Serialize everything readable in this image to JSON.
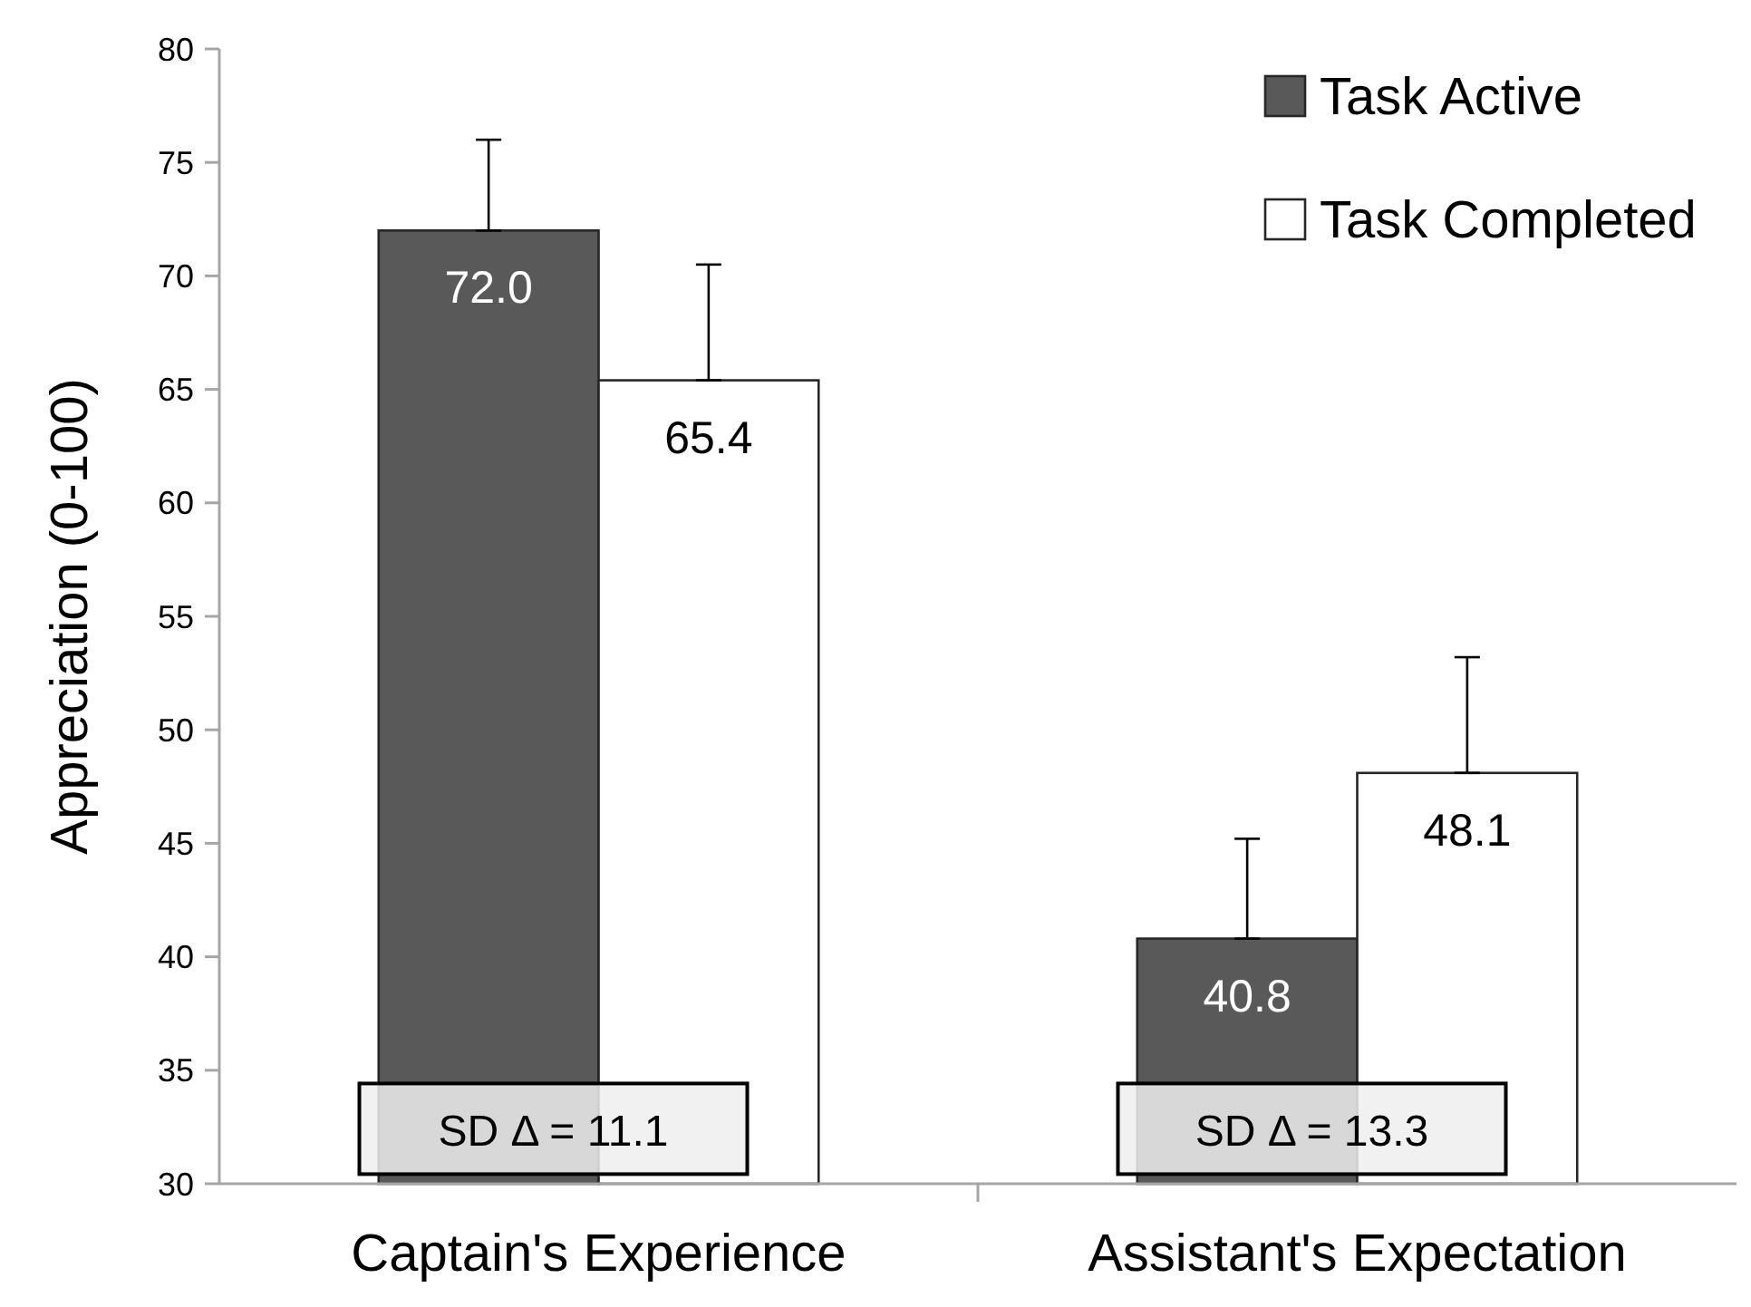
{
  "chart_data": {
    "type": "bar",
    "ylabel": "Appreciation (0-100)",
    "categories": [
      "Captain's Experience",
      "Assistant's Expectation"
    ],
    "series": [
      {
        "name": "Task Active",
        "color": "#595959",
        "values": [
          72.0,
          40.8
        ],
        "value_labels": [
          "72.0",
          "40.8"
        ],
        "errors": [
          [
            72.0,
            76.0
          ],
          [
            40.8,
            45.2
          ]
        ]
      },
      {
        "name": "Task Completed",
        "color": "#ffffff",
        "values": [
          65.4,
          48.1
        ],
        "value_labels": [
          "65.4",
          "48.1"
        ],
        "errors": [
          [
            65.4,
            70.5
          ],
          [
            48.1,
            53.2
          ]
        ]
      }
    ],
    "ylim": [
      30,
      80
    ],
    "yticks": [
      30,
      35,
      40,
      45,
      50,
      55,
      60,
      65,
      70,
      75,
      80
    ],
    "legend": "top right",
    "grid": false,
    "annotations": [
      {
        "text": "SD Δ = 11.1",
        "x": "Captain's Experience",
        "y": 32.5
      },
      {
        "text": "SD Δ = 13.3",
        "x": "Assistant's Expectation",
        "y": 32.5
      }
    ]
  }
}
